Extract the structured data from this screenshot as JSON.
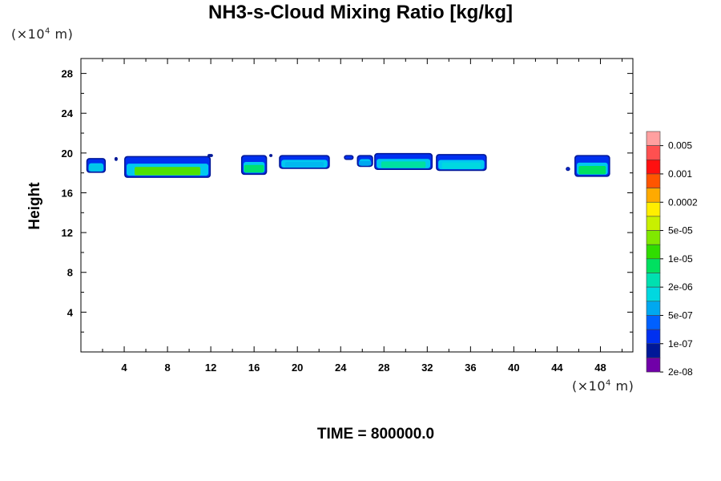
{
  "chart_data": {
    "type": "contour",
    "title": "NH3-s-Cloud Mixing Ratio [kg/kg]",
    "ylabel": "Height",
    "xlabel": "",
    "x_unit": {
      "prefix": "(×10",
      "exp": "4",
      "suffix": " m)"
    },
    "y_unit": {
      "prefix": "(×10",
      "exp": "4",
      "suffix": " m)"
    },
    "xlim": [
      0,
      51
    ],
    "ylim": [
      0,
      29.5
    ],
    "x_ticks": [
      4,
      8,
      12,
      16,
      20,
      24,
      28,
      32,
      36,
      40,
      44,
      48
    ],
    "y_ticks": [
      4,
      8,
      12,
      16,
      20,
      24,
      28
    ],
    "footer": "TIME = 800000.0",
    "colorbar": {
      "colors": [
        "#ffa0a0",
        "#ff5050",
        "#ff1010",
        "#ff5500",
        "#ffaa00",
        "#ffee00",
        "#c8f000",
        "#80e800",
        "#30dc00",
        "#00e060",
        "#00e0b0",
        "#00d8e0",
        "#00a8f0",
        "#0060ff",
        "#0030f0",
        "#001898",
        "#7000a8"
      ],
      "labels": [
        "0.005",
        "0.001",
        "0.0002",
        "5e-05",
        "1e-05",
        "2e-06",
        "5e-07",
        "1e-07",
        "2e-08"
      ],
      "label_after_band": [
        1,
        3,
        5,
        7,
        9,
        11,
        13,
        15,
        17
      ]
    },
    "clouds": [
      {
        "x1": 0.5,
        "x2": 2.3,
        "ytop": 19.5,
        "ybot": 18.0,
        "core": "#00c8e8"
      },
      {
        "x1": 3.1,
        "x2": 3.4,
        "ytop": 19.6,
        "ybot": 19.2,
        "core": "#0030f0"
      },
      {
        "x1": 4.0,
        "x2": 12.0,
        "ytop": 19.7,
        "ybot": 17.5,
        "core": "#50e000"
      },
      {
        "x1": 11.7,
        "x2": 12.2,
        "ytop": 19.9,
        "ybot": 19.6,
        "core": "#0030f0"
      },
      {
        "x1": 14.8,
        "x2": 17.2,
        "ytop": 19.8,
        "ybot": 17.8,
        "core": "#00e070"
      },
      {
        "x1": 17.4,
        "x2": 17.7,
        "ytop": 19.9,
        "ybot": 19.6,
        "core": "#0030f0"
      },
      {
        "x1": 18.3,
        "x2": 23.0,
        "ytop": 19.8,
        "ybot": 18.4,
        "core": "#00b8f0"
      },
      {
        "x1": 24.3,
        "x2": 25.2,
        "ytop": 19.8,
        "ybot": 19.3,
        "core": "#0030f0"
      },
      {
        "x1": 25.5,
        "x2": 27.0,
        "ytop": 19.8,
        "ybot": 18.6,
        "core": "#00a8f0"
      },
      {
        "x1": 27.1,
        "x2": 32.5,
        "ytop": 20.0,
        "ybot": 18.3,
        "core": "#00e0a0"
      },
      {
        "x1": 32.8,
        "x2": 37.5,
        "ytop": 19.9,
        "ybot": 18.2,
        "core": "#00d8e0"
      },
      {
        "x1": 44.8,
        "x2": 45.2,
        "ytop": 18.6,
        "ybot": 18.2,
        "core": "#00a8f0"
      },
      {
        "x1": 45.6,
        "x2": 48.9,
        "ytop": 19.8,
        "ybot": 17.6,
        "core": "#00e060"
      }
    ]
  }
}
